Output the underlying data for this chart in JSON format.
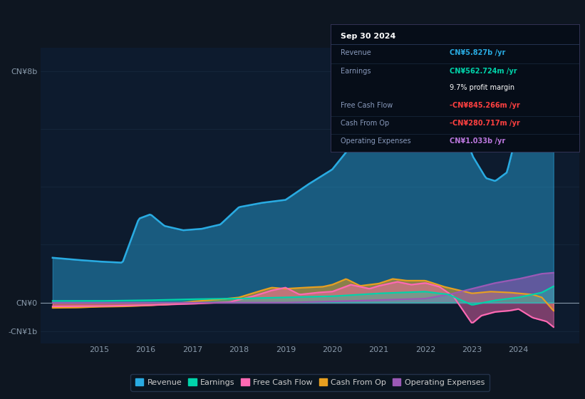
{
  "bg_color": "#0e1621",
  "plot_bg_color": "#0d1b2e",
  "grid_color": "#1a2e45",
  "revenue_color": "#29abe2",
  "earnings_color": "#00d4aa",
  "fcf_color": "#ff69b4",
  "cashfromop_color": "#e8a020",
  "opex_color": "#9b59b6",
  "zero_line_color": "#8899aa",
  "tick_color": "#8899aa",
  "ytick_label_8b": "CN¥8b",
  "ytick_label_0": "CN¥0",
  "ytick_label_neg1b": "-CN¥1b",
  "xlim_start": 2013.75,
  "xlim_end": 2025.3,
  "ylim_min": -1400000000.0,
  "ylim_max": 8800000000.0,
  "xtick_years": [
    2015,
    2016,
    2017,
    2018,
    2019,
    2020,
    2021,
    2022,
    2023,
    2024
  ],
  "info_box": {
    "date": "Sep 30 2024",
    "rows": [
      {
        "label": "Revenue",
        "value": "CN¥5.827b /yr",
        "value_color": "#29abe2",
        "bold": true
      },
      {
        "label": "Earnings",
        "value": "CN¥562.724m /yr",
        "value_color": "#00d4aa",
        "bold": true
      },
      {
        "label": "",
        "value": "9.7% profit margin",
        "value_color": "#ffffff",
        "bold": false
      },
      {
        "label": "Free Cash Flow",
        "value": "-CN¥845.266m /yr",
        "value_color": "#ff4040",
        "bold": true
      },
      {
        "label": "Cash From Op",
        "value": "-CN¥280.717m /yr",
        "value_color": "#ff4040",
        "bold": true
      },
      {
        "label": "Operating Expenses",
        "value": "CN¥1.033b /yr",
        "value_color": "#bb77dd",
        "bold": true
      }
    ]
  },
  "legend_items": [
    {
      "label": "Revenue",
      "color": "#29abe2"
    },
    {
      "label": "Earnings",
      "color": "#00d4aa"
    },
    {
      "label": "Free Cash Flow",
      "color": "#ff69b4"
    },
    {
      "label": "Cash From Op",
      "color": "#e8a020"
    },
    {
      "label": "Operating Expenses",
      "color": "#9b59b6"
    }
  ],
  "revenue_ctrl": [
    [
      2014.0,
      1.55
    ],
    [
      2014.5,
      1.48
    ],
    [
      2015.0,
      1.42
    ],
    [
      2015.5,
      1.38
    ],
    [
      2015.85,
      2.9
    ],
    [
      2016.1,
      3.05
    ],
    [
      2016.4,
      2.65
    ],
    [
      2016.8,
      2.5
    ],
    [
      2017.2,
      2.55
    ],
    [
      2017.6,
      2.7
    ],
    [
      2018.0,
      3.3
    ],
    [
      2018.5,
      3.45
    ],
    [
      2019.0,
      3.55
    ],
    [
      2019.5,
      4.1
    ],
    [
      2020.0,
      4.6
    ],
    [
      2020.5,
      5.6
    ],
    [
      2021.0,
      6.6
    ],
    [
      2021.5,
      7.3
    ],
    [
      2021.9,
      7.85
    ],
    [
      2022.3,
      8.2
    ],
    [
      2022.5,
      7.6
    ],
    [
      2022.8,
      6.5
    ],
    [
      2023.0,
      5.1
    ],
    [
      2023.3,
      4.3
    ],
    [
      2023.5,
      4.2
    ],
    [
      2023.75,
      4.5
    ],
    [
      2024.0,
      6.1
    ],
    [
      2024.3,
      5.6
    ],
    [
      2024.55,
      5.85
    ],
    [
      2024.75,
      5.83
    ]
  ],
  "earnings_ctrl": [
    [
      2014.0,
      0.06
    ],
    [
      2015.0,
      0.06
    ],
    [
      2016.0,
      0.08
    ],
    [
      2017.0,
      0.12
    ],
    [
      2018.0,
      0.14
    ],
    [
      2019.0,
      0.18
    ],
    [
      2020.0,
      0.22
    ],
    [
      2021.0,
      0.32
    ],
    [
      2022.0,
      0.38
    ],
    [
      2022.5,
      0.28
    ],
    [
      2023.0,
      -0.08
    ],
    [
      2023.5,
      0.08
    ],
    [
      2024.0,
      0.18
    ],
    [
      2024.5,
      0.35
    ],
    [
      2024.75,
      0.563
    ]
  ],
  "fcf_ctrl": [
    [
      2014.0,
      -0.13
    ],
    [
      2015.0,
      -0.12
    ],
    [
      2016.0,
      -0.09
    ],
    [
      2017.0,
      -0.04
    ],
    [
      2017.8,
      0.02
    ],
    [
      2018.3,
      0.22
    ],
    [
      2018.7,
      0.42
    ],
    [
      2019.0,
      0.52
    ],
    [
      2019.3,
      0.28
    ],
    [
      2019.7,
      0.35
    ],
    [
      2020.0,
      0.38
    ],
    [
      2020.4,
      0.62
    ],
    [
      2020.8,
      0.48
    ],
    [
      2021.0,
      0.58
    ],
    [
      2021.4,
      0.72
    ],
    [
      2021.7,
      0.62
    ],
    [
      2022.0,
      0.68
    ],
    [
      2022.3,
      0.55
    ],
    [
      2022.6,
      0.22
    ],
    [
      2023.0,
      -0.72
    ],
    [
      2023.2,
      -0.45
    ],
    [
      2023.5,
      -0.32
    ],
    [
      2023.8,
      -0.28
    ],
    [
      2024.0,
      -0.22
    ],
    [
      2024.3,
      -0.52
    ],
    [
      2024.6,
      -0.65
    ],
    [
      2024.75,
      -0.845
    ]
  ],
  "cashfromop_ctrl": [
    [
      2014.0,
      -0.18
    ],
    [
      2014.5,
      -0.17
    ],
    [
      2015.0,
      -0.14
    ],
    [
      2015.5,
      -0.13
    ],
    [
      2016.0,
      -0.1
    ],
    [
      2016.5,
      -0.06
    ],
    [
      2017.0,
      0.04
    ],
    [
      2017.5,
      0.1
    ],
    [
      2018.0,
      0.18
    ],
    [
      2018.4,
      0.38
    ],
    [
      2018.7,
      0.52
    ],
    [
      2019.0,
      0.48
    ],
    [
      2019.4,
      0.52
    ],
    [
      2019.8,
      0.55
    ],
    [
      2020.0,
      0.62
    ],
    [
      2020.3,
      0.82
    ],
    [
      2020.6,
      0.58
    ],
    [
      2021.0,
      0.66
    ],
    [
      2021.3,
      0.82
    ],
    [
      2021.6,
      0.76
    ],
    [
      2022.0,
      0.76
    ],
    [
      2022.4,
      0.55
    ],
    [
      2022.8,
      0.4
    ],
    [
      2023.0,
      0.32
    ],
    [
      2023.4,
      0.38
    ],
    [
      2023.8,
      0.35
    ],
    [
      2024.0,
      0.32
    ],
    [
      2024.3,
      0.28
    ],
    [
      2024.5,
      0.18
    ],
    [
      2024.75,
      -0.28
    ]
  ],
  "opex_ctrl": [
    [
      2014.0,
      0.0
    ],
    [
      2018.0,
      0.0
    ],
    [
      2019.0,
      0.0
    ],
    [
      2020.0,
      0.04
    ],
    [
      2021.0,
      0.09
    ],
    [
      2022.0,
      0.14
    ],
    [
      2022.5,
      0.28
    ],
    [
      2023.0,
      0.48
    ],
    [
      2023.5,
      0.68
    ],
    [
      2024.0,
      0.82
    ],
    [
      2024.5,
      1.0
    ],
    [
      2024.75,
      1.033
    ]
  ]
}
